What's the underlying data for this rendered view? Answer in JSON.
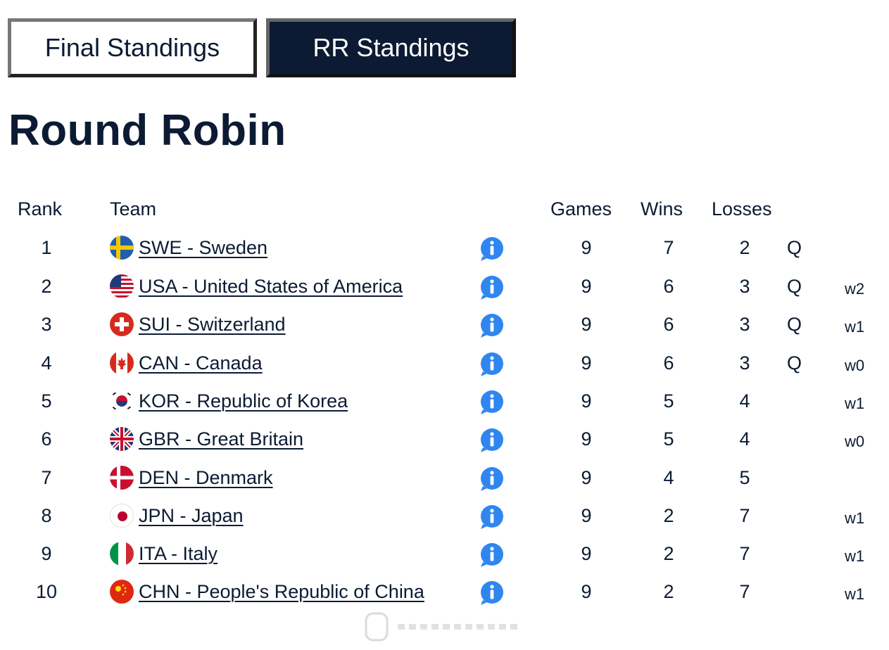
{
  "tabs": [
    {
      "label": "Final Standings"
    },
    {
      "label": "RR Standings"
    }
  ],
  "heading": "Round Robin",
  "columns": {
    "rank": "Rank",
    "team": "Team",
    "games": "Games",
    "wins": "Wins",
    "losses": "Losses"
  },
  "rows": [
    {
      "rank": "1",
      "team": "SWE - Sweden",
      "games": "9",
      "wins": "7",
      "losses": "2",
      "q": "Q",
      "w": ""
    },
    {
      "rank": "2",
      "team": "USA - United States of America",
      "games": "9",
      "wins": "6",
      "losses": "3",
      "q": "Q",
      "w": "w2"
    },
    {
      "rank": "3",
      "team": "SUI - Switzerland",
      "games": "9",
      "wins": "6",
      "losses": "3",
      "q": "Q",
      "w": "w1"
    },
    {
      "rank": "4",
      "team": "CAN - Canada",
      "games": "9",
      "wins": "6",
      "losses": "3",
      "q": "Q",
      "w": "w0"
    },
    {
      "rank": "5",
      "team": "KOR - Republic of Korea",
      "games": "9",
      "wins": "5",
      "losses": "4",
      "q": "",
      "w": "w1"
    },
    {
      "rank": "6",
      "team": "GBR - Great Britain",
      "games": "9",
      "wins": "5",
      "losses": "4",
      "q": "",
      "w": "w0"
    },
    {
      "rank": "7",
      "team": "DEN - Denmark",
      "games": "9",
      "wins": "4",
      "losses": "5",
      "q": "",
      "w": ""
    },
    {
      "rank": "8",
      "team": "JPN - Japan",
      "games": "9",
      "wins": "2",
      "losses": "7",
      "q": "",
      "w": "w1"
    },
    {
      "rank": "9",
      "team": "ITA - Italy",
      "games": "9",
      "wins": "2",
      "losses": "7",
      "q": "",
      "w": "w1"
    },
    {
      "rank": "10",
      "team": "CHN - People's Republic of China",
      "games": "9",
      "wins": "2",
      "losses": "7",
      "q": "",
      "w": "w1"
    }
  ],
  "icons": {
    "info": "info-icon"
  },
  "colors": {
    "navy": "#0c1b33",
    "info_blue": "#2f86f0"
  }
}
